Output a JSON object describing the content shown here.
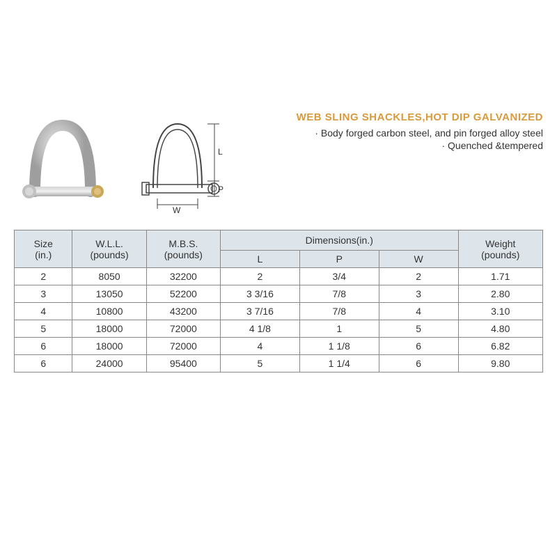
{
  "title": "WEB SLING SHACKLES,HOT DIP GALVANIZED",
  "bullets": [
    "· Body forged carbon steel, and pin forged alloy steel",
    "· Quenched &tempered"
  ],
  "title_color": "#d89a3a",
  "text_color": "#333333",
  "header_bg": "#dde5eb",
  "border_color": "#888888",
  "table": {
    "headers": {
      "size": "Size\n(in.)",
      "wll": "W.L.L.\n(pounds)",
      "mbs": "M.B.S.\n(pounds)",
      "dimensions": "Dimensions(in.)",
      "weight": "Weight\n(pounds)",
      "L": "L",
      "P": "P",
      "W": "W"
    },
    "rows": [
      {
        "size": "2",
        "wll": "8050",
        "mbs": "32200",
        "L": "2",
        "P": "3/4",
        "W": "2",
        "weight": "1.71"
      },
      {
        "size": "3",
        "wll": "13050",
        "mbs": "52200",
        "L": "3 3/16",
        "P": "7/8",
        "W": "3",
        "weight": "2.80"
      },
      {
        "size": "4",
        "wll": "10800",
        "mbs": "43200",
        "L": "3 7/16",
        "P": "7/8",
        "W": "4",
        "weight": "3.10"
      },
      {
        "size": "5",
        "wll": "18000",
        "mbs": "72000",
        "L": "4 1/8",
        "P": "1",
        "W": "5",
        "weight": "4.80"
      },
      {
        "size": "6",
        "wll": "18000",
        "mbs": "72000",
        "L": "4",
        "P": "1 1/8",
        "W": "6",
        "weight": "6.82"
      },
      {
        "size": "6",
        "wll": "24000",
        "mbs": "95400",
        "L": "5",
        "P": "1 1/4",
        "W": "6",
        "weight": "9.80"
      }
    ]
  },
  "diagram_labels": {
    "L": "L",
    "P": "P",
    "W": "W"
  },
  "column_widths": [
    "11%",
    "14%",
    "14%",
    "15%",
    "15%",
    "15%",
    "16%"
  ]
}
